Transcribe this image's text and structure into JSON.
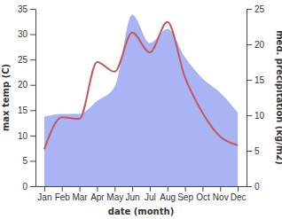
{
  "chart_data": {
    "type": "line",
    "x_label": "date (month)",
    "y_label": "max temp (C)",
    "y2_label": "med. precipitation (kg/m2)",
    "categories": [
      "Jan",
      "Feb",
      "Mar",
      "Apr",
      "May",
      "Jun",
      "Jul",
      "Aug",
      "Sep",
      "Oct",
      "Nov",
      "Dec"
    ],
    "series": [
      {
        "type": "area",
        "axis": "y2",
        "color": "#aab4f5",
        "values": [
          9.8,
          10.2,
          10.2,
          12,
          14,
          24.2,
          20.2,
          22.2,
          18.2,
          15.2,
          13.2,
          10.4
        ]
      },
      {
        "type": "line",
        "color": "#c05a5a",
        "values": [
          7.3,
          13.6,
          13.3,
          24.5,
          22.6,
          30.3,
          26.4,
          32.4,
          21.5,
          14.5,
          9.8,
          8.1
        ]
      }
    ],
    "ylim": [
      0,
      35
    ],
    "yticks": [
      0,
      5,
      10,
      15,
      20,
      25,
      30,
      35
    ],
    "y2lim": [
      0,
      25
    ],
    "y2ticks": [
      0,
      5,
      10,
      15,
      20,
      25
    ]
  }
}
